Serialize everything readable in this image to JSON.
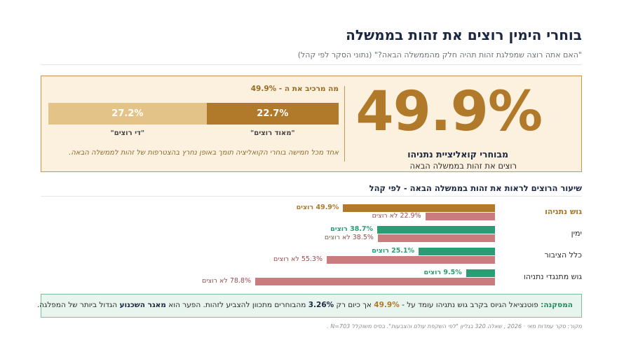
{
  "title": "בוחרי הימין רוצים את זהות בממשלה",
  "subtitle": "\"האם אתה רוצה שמפלגת זהות תהיה חלק מהממשלה הבאה?\" (נתוני הסקר לפי קהל)",
  "hero": {
    "big_value": "49.9%",
    "big_label": "מבוחרי קואליציית נתניהו",
    "big_sublabel": "רוצים את זהות בממשלה הבאה",
    "composition_title": "מה מרכיב את ה -",
    "composition_value": "49.9%",
    "segments": [
      {
        "value": 22.7,
        "display": "22.7%",
        "label": "\"מאוד רוצים\"",
        "color": "#b07a2a"
      },
      {
        "value": 27.2,
        "display": "27.2%",
        "label": "\"די רוצים\"",
        "color": "#e3c387"
      }
    ],
    "note": "אחד מכל חמישה בוחרי הקואליציה תומך באופן נחרץ בהצטרפות של זהות לממשלה הבאה."
  },
  "section_title": "שיעור הרוצים לראות את זהות בממשלה הבאה - לפי קהל",
  "colors": {
    "gold": "#b07a2a",
    "green": "#2a9d74",
    "pink": "#c97b7e"
  },
  "chart_data": {
    "type": "bar",
    "orientation": "horizontal",
    "categories": [
      "גוש נתניהו",
      "ימין",
      "כלל הציבור",
      "גוש מתנגדי נתניהו"
    ],
    "highlight_category": "גוש נתניהו",
    "series": [
      {
        "name": "רוצים",
        "values": [
          49.9,
          38.7,
          25.1,
          9.5
        ],
        "labels": [
          "49.9% רוצים",
          "38.7% רוצים",
          "25.1% רוצים",
          "9.5% רוצים"
        ]
      },
      {
        "name": "לא רוצים",
        "values": [
          22.9,
          38.5,
          55.3,
          78.8
        ],
        "labels": [
          "22.9% לא רוצים",
          "38.5% לא רוצים",
          "55.3% לא רוצים",
          "78.8% לא רוצים"
        ]
      }
    ],
    "xlim": [
      0,
      100
    ],
    "grid": false
  },
  "conclusion": {
    "lead": "המסקנה:",
    "part1": "פוטנציאל הגיוס בקרב גוש נתניהו עומד על -",
    "value1": "49.9%",
    "part2": "אך כיום רק",
    "value2": "3.26%",
    "part3": "מהבוחרים מתכוון להצביע לזהות. הפער הוא",
    "bold": "מאגר השכנוע",
    "part4": "הגדול ביותר של המפלגה."
  },
  "source": "מקור: סקר עמדות מאי · 2026 , שאלה 320 בגליון \"לפי השקפת עולם והצבעות\". בסיס משוקלל N=703 ."
}
